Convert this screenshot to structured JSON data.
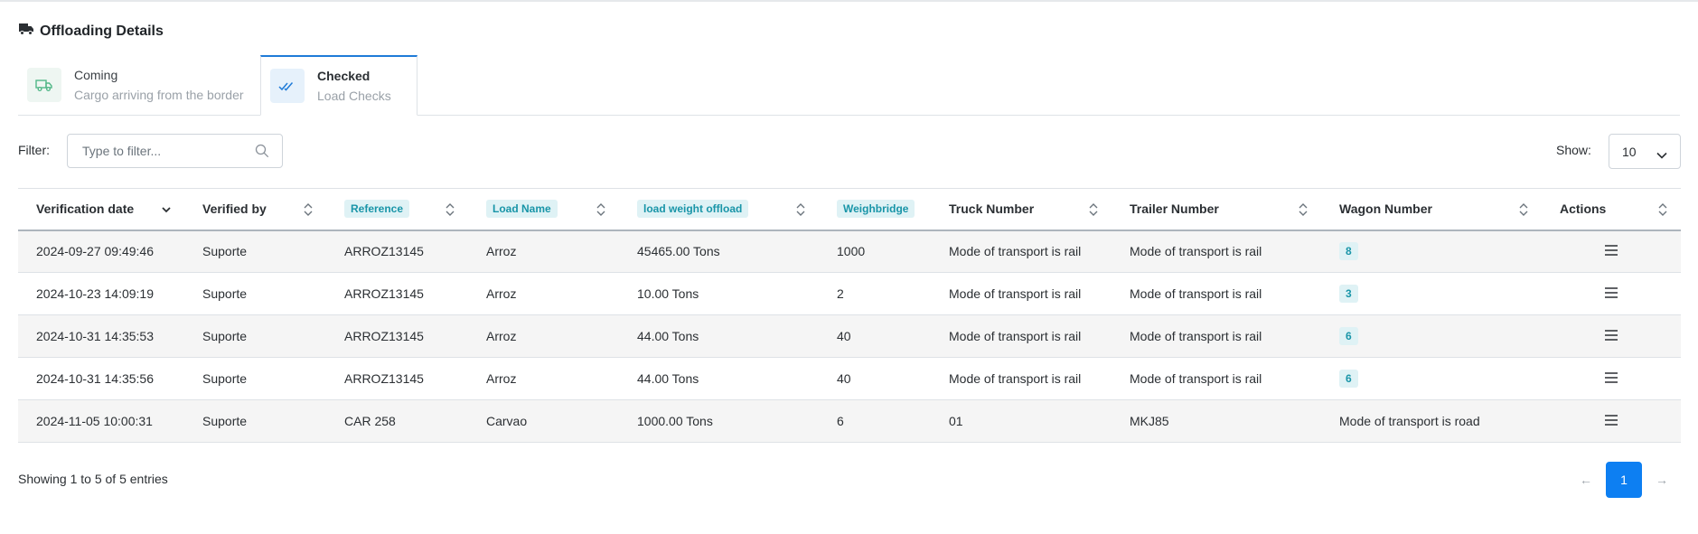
{
  "header": {
    "title": "Offloading Details",
    "icon": "truck-icon"
  },
  "tabs": [
    {
      "label": "Coming",
      "sublabel": "Cargo arriving from the border",
      "icon": "truck-outline-icon"
    },
    {
      "label": "Checked",
      "sublabel": "Load Checks",
      "icon": "double-check-icon"
    }
  ],
  "filter": {
    "label": "Filter:",
    "placeholder": "Type to filter...",
    "value": ""
  },
  "show": {
    "label": "Show:",
    "value": "10"
  },
  "table": {
    "columns": [
      "Verification date",
      "Verified by",
      "Reference",
      "Load Name",
      "load weight offload",
      "Weighbridge",
      "Truck Number",
      "Trailer Number",
      "Wagon Number",
      "Actions"
    ],
    "rows": [
      [
        "2024-09-27 09:49:46",
        "Suporte",
        "ARROZ13145",
        "Arroz",
        "45465.00 Tons",
        "1000",
        "Mode of transport is rail",
        "Mode of transport is rail",
        "8"
      ],
      [
        "2024-10-23 14:09:19",
        "Suporte",
        "ARROZ13145",
        "Arroz",
        "10.00 Tons",
        "2",
        "Mode of transport is rail",
        "Mode of transport is rail",
        "3"
      ],
      [
        "2024-10-31 14:35:53",
        "Suporte",
        "ARROZ13145",
        "Arroz",
        "44.00 Tons",
        "40",
        "Mode of transport is rail",
        "Mode of transport is rail",
        "6"
      ],
      [
        "2024-10-31 14:35:56",
        "Suporte",
        "ARROZ13145",
        "Arroz",
        "44.00 Tons",
        "40",
        "Mode of transport is rail",
        "Mode of transport is rail",
        "6"
      ],
      [
        "2024-11-05 10:00:31",
        "Suporte",
        "CAR 258",
        "Carvao",
        "1000.00 Tons",
        "6",
        "01",
        "MKJ85",
        "Mode of transport is road"
      ]
    ]
  },
  "footer": {
    "info": "Showing 1 to 5 of 5 entries",
    "prev": "←",
    "page": "1",
    "next": "→"
  },
  "colors": {
    "accent": "#0d7ff2",
    "pill_bg": "#dff2f5",
    "pill_text": "#1995a8"
  }
}
